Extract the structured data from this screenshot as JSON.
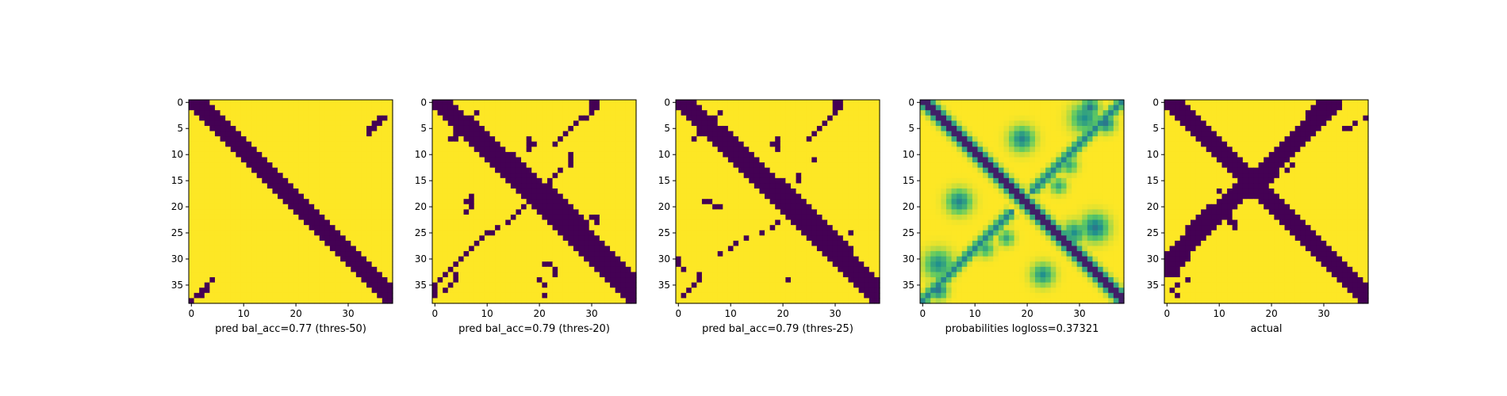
{
  "chart_data": [
    {
      "type": "heatmap",
      "xlabel": "pred bal_acc=0.77 (thres-50)",
      "size": 39,
      "xticks": [
        0,
        10,
        20,
        30
      ],
      "yticks": [
        0,
        5,
        10,
        15,
        20,
        25,
        30,
        35
      ],
      "colors": {
        "low": "#440154",
        "high": "#fde725"
      },
      "diagonal": {
        "start_width": 4,
        "max_width": 4,
        "end_width": 4
      },
      "anti_diagonal": [],
      "extra_cells": [
        [
          3,
          37
        ],
        [
          4,
          36
        ],
        [
          5,
          35
        ],
        [
          6,
          34
        ],
        [
          3,
          36
        ],
        [
          4,
          35
        ],
        [
          5,
          34
        ],
        [
          34,
          4
        ],
        [
          35,
          3
        ],
        [
          36,
          2
        ],
        [
          37,
          1
        ],
        [
          38,
          0
        ],
        [
          36,
          3
        ],
        [
          37,
          2
        ]
      ],
      "prob_spots": []
    },
    {
      "type": "heatmap",
      "xlabel": "pred bal_acc=0.79 (thres-20)",
      "size": 39,
      "xticks": [
        0,
        10,
        20,
        30
      ],
      "yticks": [
        0,
        5,
        10,
        15,
        20,
        25,
        30,
        35
      ],
      "colors": {
        "low": "#440154",
        "high": "#fde725"
      },
      "diagonal": {
        "start_width": 4,
        "max_width": 7,
        "end_width": 5
      },
      "anti_diagonal": [],
      "extra_cells": [
        [
          0,
          30
        ],
        [
          0,
          31
        ],
        [
          1,
          30
        ],
        [
          1,
          31
        ],
        [
          2,
          30
        ],
        [
          3,
          29
        ],
        [
          3,
          28
        ],
        [
          4,
          27
        ],
        [
          5,
          26
        ],
        [
          6,
          25
        ],
        [
          7,
          24
        ],
        [
          8,
          23
        ],
        [
          7,
          3
        ],
        [
          7,
          4
        ],
        [
          6,
          4
        ],
        [
          5,
          5
        ],
        [
          4,
          6
        ],
        [
          3,
          7
        ],
        [
          2,
          8
        ],
        [
          8,
          18
        ],
        [
          8,
          19
        ],
        [
          7,
          18
        ],
        [
          9,
          18
        ],
        [
          10,
          26
        ],
        [
          11,
          26
        ],
        [
          12,
          26
        ],
        [
          13,
          24
        ],
        [
          14,
          23
        ],
        [
          15,
          22
        ],
        [
          16,
          21
        ],
        [
          17,
          20
        ],
        [
          18,
          19
        ],
        [
          19,
          18
        ],
        [
          20,
          17
        ],
        [
          21,
          16
        ],
        [
          22,
          15
        ],
        [
          23,
          14
        ],
        [
          24,
          12
        ],
        [
          25,
          11
        ],
        [
          25,
          10
        ],
        [
          26,
          9
        ],
        [
          27,
          8
        ],
        [
          28,
          7
        ],
        [
          29,
          6
        ],
        [
          30,
          5
        ],
        [
          31,
          4
        ],
        [
          32,
          3
        ],
        [
          33,
          2
        ],
        [
          34,
          1
        ],
        [
          35,
          0
        ],
        [
          36,
          0
        ],
        [
          37,
          0
        ],
        [
          19,
          6
        ],
        [
          19,
          7
        ],
        [
          20,
          7
        ],
        [
          18,
          7
        ],
        [
          21,
          6
        ],
        [
          22,
          30
        ],
        [
          22,
          31
        ],
        [
          23,
          31
        ],
        [
          24,
          29
        ],
        [
          26,
          29
        ],
        [
          27,
          30
        ],
        [
          31,
          21
        ],
        [
          31,
          22
        ],
        [
          32,
          23
        ],
        [
          33,
          23
        ],
        [
          34,
          20
        ],
        [
          35,
          21
        ],
        [
          37,
          21
        ],
        [
          33,
          4
        ],
        [
          34,
          4
        ],
        [
          35,
          3
        ],
        [
          36,
          2
        ]
      ],
      "prob_spots": []
    },
    {
      "type": "heatmap",
      "xlabel": "pred bal_acc=0.79 (thres-25)",
      "size": 39,
      "xticks": [
        0,
        10,
        20,
        30
      ],
      "yticks": [
        0,
        5,
        10,
        15,
        20,
        25,
        30,
        35
      ],
      "colors": {
        "low": "#440154",
        "high": "#fde725"
      },
      "diagonal": {
        "start_width": 4,
        "max_width": 6,
        "end_width": 5
      },
      "anti_diagonal": [],
      "extra_cells": [
        [
          0,
          30
        ],
        [
          0,
          31
        ],
        [
          1,
          30
        ],
        [
          1,
          31
        ],
        [
          2,
          30
        ],
        [
          3,
          29
        ],
        [
          4,
          28
        ],
        [
          5,
          27
        ],
        [
          6,
          26
        ],
        [
          7,
          25
        ],
        [
          7,
          3
        ],
        [
          6,
          4
        ],
        [
          5,
          5
        ],
        [
          4,
          6
        ],
        [
          3,
          7
        ],
        [
          2,
          8
        ],
        [
          7,
          19
        ],
        [
          8,
          19
        ],
        [
          9,
          19
        ],
        [
          8,
          18
        ],
        [
          11,
          26
        ],
        [
          14,
          23
        ],
        [
          15,
          23
        ],
        [
          19,
          6
        ],
        [
          20,
          7
        ],
        [
          20,
          8
        ],
        [
          19,
          5
        ],
        [
          23,
          19
        ],
        [
          24,
          18
        ],
        [
          25,
          16
        ],
        [
          26,
          13
        ],
        [
          27,
          11
        ],
        [
          28,
          10
        ],
        [
          29,
          8
        ],
        [
          30,
          0
        ],
        [
          31,
          0
        ],
        [
          32,
          1
        ],
        [
          33,
          4
        ],
        [
          34,
          4
        ],
        [
          35,
          3
        ],
        [
          36,
          2
        ],
        [
          37,
          1
        ],
        [
          34,
          21
        ],
        [
          25,
          33
        ]
      ],
      "prob_spots": []
    },
    {
      "type": "heatmap",
      "xlabel": "probabilities logloss=0.37321",
      "size": 39,
      "xticks": [
        0,
        10,
        20,
        30
      ],
      "yticks": [
        0,
        5,
        10,
        15,
        20,
        25,
        30,
        35
      ],
      "colors": {
        "low": "#440154",
        "high": "#fde725"
      },
      "diagonal": {
        "start_width": 3,
        "max_width": 3,
        "end_width": 3
      },
      "anti_diagonal": [],
      "extra_cells": [],
      "prob_spots": [
        [
          7,
          19,
          2.2,
          0.55
        ],
        [
          19,
          7,
          2.2,
          0.55
        ],
        [
          24,
          33,
          2.4,
          0.6
        ],
        [
          25,
          29,
          2.0,
          0.5
        ],
        [
          33,
          23,
          2.0,
          0.5
        ],
        [
          31,
          3,
          2.5,
          0.5
        ],
        [
          3,
          31,
          2.5,
          0.5
        ],
        [
          1,
          32,
          1.6,
          0.6
        ],
        [
          4,
          35,
          1.6,
          0.6
        ],
        [
          36,
          3,
          1.6,
          0.6
        ],
        [
          26,
          16,
          1.4,
          0.4
        ],
        [
          16,
          26,
          1.4,
          0.4
        ],
        [
          28,
          12,
          1.5,
          0.4
        ],
        [
          12,
          28,
          1.5,
          0.4
        ]
      ]
    },
    {
      "type": "heatmap",
      "xlabel": "actual",
      "size": 39,
      "xticks": [
        0,
        10,
        20,
        30
      ],
      "yticks": [
        0,
        5,
        10,
        15,
        20,
        25,
        30,
        35
      ],
      "colors": {
        "low": "#440154",
        "high": "#fde725"
      },
      "diagonal": {
        "start_width": 4,
        "max_width": 4,
        "end_width": 4
      },
      "anti_diagonal": [
        [
          0,
          29,
          33
        ],
        [
          1,
          28,
          33
        ],
        [
          2,
          27,
          32
        ],
        [
          3,
          27,
          31
        ],
        [
          4,
          26,
          30
        ],
        [
          5,
          25,
          29
        ],
        [
          6,
          24,
          28
        ],
        [
          7,
          23,
          27
        ],
        [
          8,
          22,
          26
        ],
        [
          9,
          21,
          25
        ],
        [
          10,
          20,
          24
        ],
        [
          11,
          19,
          23
        ],
        [
          12,
          18,
          22
        ],
        [
          13,
          17,
          21
        ],
        [
          14,
          16,
          21
        ],
        [
          15,
          14,
          20
        ],
        [
          16,
          13,
          19
        ],
        [
          17,
          12,
          17
        ],
        [
          18,
          11,
          16
        ],
        [
          19,
          10,
          14
        ],
        [
          20,
          8,
          13
        ],
        [
          21,
          7,
          12
        ],
        [
          22,
          6,
          11
        ],
        [
          23,
          5,
          10
        ],
        [
          24,
          4,
          9
        ],
        [
          25,
          4,
          8
        ],
        [
          26,
          3,
          7
        ],
        [
          27,
          2,
          6
        ],
        [
          28,
          1,
          5
        ],
        [
          29,
          0,
          4
        ],
        [
          30,
          0,
          4
        ],
        [
          31,
          0,
          3
        ],
        [
          32,
          0,
          2
        ],
        [
          33,
          0,
          2
        ]
      ],
      "extra_cells": [
        [
          23,
          13
        ],
        [
          23,
          12
        ],
        [
          22,
          12
        ],
        [
          24,
          13
        ],
        [
          13,
          23
        ],
        [
          12,
          24
        ],
        [
          5,
          35
        ],
        [
          4,
          36
        ],
        [
          3,
          38
        ],
        [
          5,
          34
        ],
        [
          17,
          10
        ],
        [
          35,
          2
        ],
        [
          34,
          4
        ],
        [
          36,
          1
        ],
        [
          37,
          2
        ]
      ],
      "prob_spots": []
    }
  ]
}
